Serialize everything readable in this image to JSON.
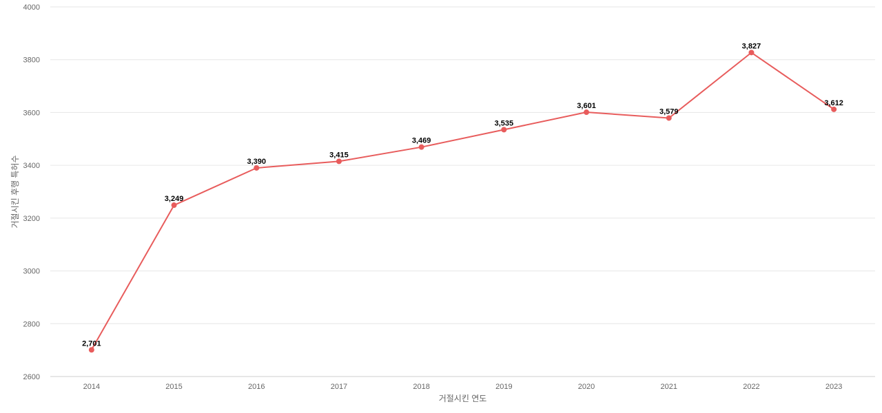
{
  "chart_data": {
    "type": "line",
    "title": "",
    "xlabel": "거절시킨 연도",
    "ylabel": "거절시킨 후행 특허수",
    "x": [
      "2014",
      "2015",
      "2016",
      "2017",
      "2018",
      "2019",
      "2020",
      "2021",
      "2022",
      "2023"
    ],
    "series": [
      {
        "values": [
          2701,
          3249,
          3390,
          3415,
          3469,
          3535,
          3601,
          3579,
          3827,
          3612
        ],
        "labels": [
          "2,701",
          "3,249",
          "3,390",
          "3,415",
          "3,469",
          "3,535",
          "3,601",
          "3,579",
          "3,827",
          "3,612"
        ],
        "color": "#e85c5c"
      }
    ],
    "ylim": [
      2600,
      4000
    ],
    "yticks": [
      "2600",
      "2800",
      "3000",
      "3200",
      "3400",
      "3600",
      "3800",
      "4000"
    ],
    "grid": true,
    "legend": "none"
  }
}
